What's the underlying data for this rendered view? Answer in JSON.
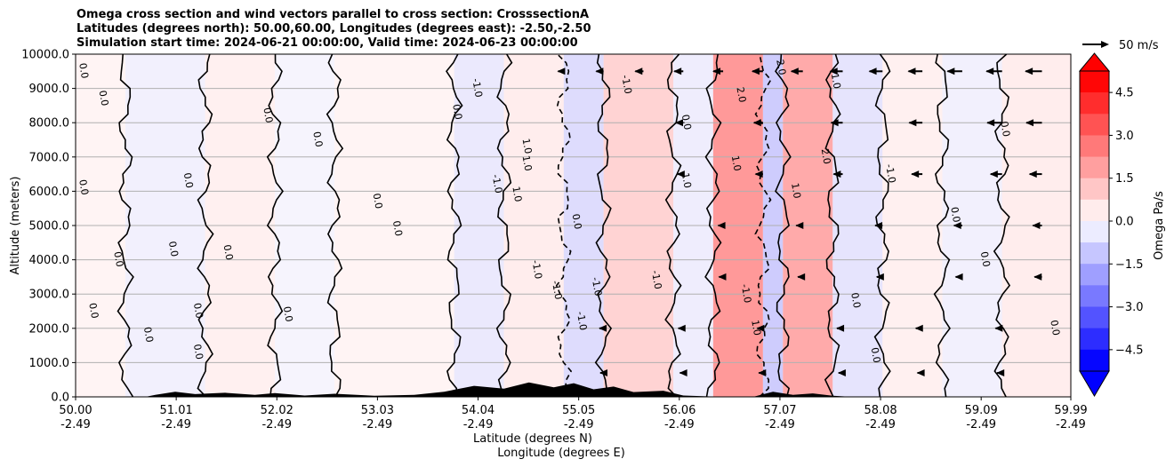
{
  "chart_data": {
    "type": "contour",
    "title": [
      "Omega cross section and wind vectors parallel to cross section: CrosssectionA",
      "Latitudes (degrees north): 50.00,60.00, Longitudes (degrees east): -2.50,-2.50",
      "Simulation start time: 2024-06-21 00:00:00, Valid time: 2024-06-23 00:00:00"
    ],
    "ylabel": "Altitude (meters)",
    "xlabel_lat": "Latitude (degrees N)",
    "xlabel_lon": "Longitude (degrees E)",
    "ylim": [
      0,
      10000
    ],
    "y_ticks": [
      0,
      1000,
      2000,
      3000,
      4000,
      5000,
      6000,
      7000,
      8000,
      9000,
      10000
    ],
    "y_tick_labels": [
      "0.0",
      "1000.0",
      "2000.0",
      "3000.0",
      "4000.0",
      "5000.0",
      "6000.0",
      "7000.0",
      "8000.0",
      "9000.0",
      "10000.0"
    ],
    "x_ticks": [
      {
        "lat": "50.00",
        "lon": "-2.49"
      },
      {
        "lat": "51.01",
        "lon": "-2.49"
      },
      {
        "lat": "52.02",
        "lon": "-2.49"
      },
      {
        "lat": "53.03",
        "lon": "-2.49"
      },
      {
        "lat": "54.04",
        "lon": "-2.49"
      },
      {
        "lat": "55.05",
        "lon": "-2.49"
      },
      {
        "lat": "56.06",
        "lon": "-2.49"
      },
      {
        "lat": "57.07",
        "lon": "-2.49"
      },
      {
        "lat": "58.08",
        "lon": "-2.49"
      },
      {
        "lat": "59.09",
        "lon": "-2.49"
      },
      {
        "lat": "59.99",
        "lon": "-2.49"
      }
    ],
    "colorbar": {
      "label": "Omega Pa/s",
      "range": [
        -5.25,
        5.25
      ],
      "ticks": [
        4.5,
        3.0,
        1.5,
        0.0,
        -1.5,
        -3.0,
        -4.5
      ],
      "tick_labels": [
        "4.5",
        "3.0",
        "1.5",
        "0.0",
        "−1.5",
        "−3.0",
        "−4.5"
      ],
      "extend": "both",
      "neg_color": "#0000ff",
      "pos_color": "#ff0000"
    },
    "quiver_key": {
      "label": "50 m/s",
      "value": 50
    },
    "omega_bands": [
      {
        "lat_start": 50.0,
        "lat_end": 50.5,
        "omega": 0.2
      },
      {
        "lat_start": 50.5,
        "lat_end": 51.3,
        "omega": -0.3
      },
      {
        "lat_start": 51.3,
        "lat_end": 52.0,
        "omega": 0.3
      },
      {
        "lat_start": 52.0,
        "lat_end": 52.6,
        "omega": -0.2
      },
      {
        "lat_start": 52.6,
        "lat_end": 53.8,
        "omega": 0.2
      },
      {
        "lat_start": 53.8,
        "lat_end": 54.3,
        "omega": -0.5
      },
      {
        "lat_start": 54.3,
        "lat_end": 54.9,
        "omega": 0.4
      },
      {
        "lat_start": 54.9,
        "lat_end": 55.3,
        "omega": -0.8
      },
      {
        "lat_start": 55.3,
        "lat_end": 56.0,
        "omega": 1.0
      },
      {
        "lat_start": 56.0,
        "lat_end": 56.4,
        "omega": -0.4
      },
      {
        "lat_start": 56.4,
        "lat_end": 56.9,
        "omega": 2.4
      },
      {
        "lat_start": 56.9,
        "lat_end": 57.1,
        "omega": -1.2
      },
      {
        "lat_start": 57.1,
        "lat_end": 57.6,
        "omega": 2.0
      },
      {
        "lat_start": 57.6,
        "lat_end": 58.1,
        "omega": -0.6
      },
      {
        "lat_start": 58.1,
        "lat_end": 58.7,
        "omega": 0.3
      },
      {
        "lat_start": 58.7,
        "lat_end": 59.3,
        "omega": -0.3
      },
      {
        "lat_start": 59.3,
        "lat_end": 59.99,
        "omega": 0.4
      }
    ],
    "wind_vectors": [
      {
        "lat": 54.9,
        "alt": 9500,
        "u": -14
      },
      {
        "lat": 55.3,
        "alt": 9500,
        "u": -18
      },
      {
        "lat": 55.7,
        "alt": 9500,
        "u": -20
      },
      {
        "lat": 56.1,
        "alt": 9500,
        "u": -22
      },
      {
        "lat": 56.5,
        "alt": 9500,
        "u": -24
      },
      {
        "lat": 56.9,
        "alt": 9500,
        "u": -26
      },
      {
        "lat": 57.3,
        "alt": 9500,
        "u": -28
      },
      {
        "lat": 57.7,
        "alt": 9500,
        "u": -30
      },
      {
        "lat": 58.1,
        "alt": 9500,
        "u": -32
      },
      {
        "lat": 58.5,
        "alt": 9500,
        "u": -34
      },
      {
        "lat": 58.9,
        "alt": 9500,
        "u": -36
      },
      {
        "lat": 59.3,
        "alt": 9500,
        "u": -38
      },
      {
        "lat": 59.7,
        "alt": 9500,
        "u": -40
      },
      {
        "lat": 56.1,
        "alt": 8000,
        "u": -18
      },
      {
        "lat": 56.9,
        "alt": 8000,
        "u": -22
      },
      {
        "lat": 57.7,
        "alt": 8000,
        "u": -28
      },
      {
        "lat": 58.5,
        "alt": 8000,
        "u": -32
      },
      {
        "lat": 59.3,
        "alt": 8000,
        "u": -36
      },
      {
        "lat": 59.7,
        "alt": 8000,
        "u": -38
      },
      {
        "lat": 56.1,
        "alt": 6500,
        "u": -14
      },
      {
        "lat": 56.9,
        "alt": 6500,
        "u": -18
      },
      {
        "lat": 57.7,
        "alt": 6500,
        "u": -22
      },
      {
        "lat": 58.5,
        "alt": 6500,
        "u": -26
      },
      {
        "lat": 59.3,
        "alt": 6500,
        "u": -28
      },
      {
        "lat": 59.7,
        "alt": 6500,
        "u": -30
      },
      {
        "lat": 56.5,
        "alt": 5000,
        "u": -12
      },
      {
        "lat": 57.3,
        "alt": 5000,
        "u": -16
      },
      {
        "lat": 58.1,
        "alt": 5000,
        "u": -18
      },
      {
        "lat": 58.9,
        "alt": 5000,
        "u": -20
      },
      {
        "lat": 59.7,
        "alt": 5000,
        "u": -22
      },
      {
        "lat": 56.5,
        "alt": 3500,
        "u": -10
      },
      {
        "lat": 57.3,
        "alt": 3500,
        "u": -12
      },
      {
        "lat": 58.1,
        "alt": 3500,
        "u": -14
      },
      {
        "lat": 58.9,
        "alt": 3500,
        "u": -16
      },
      {
        "lat": 59.7,
        "alt": 3500,
        "u": -18
      },
      {
        "lat": 55.3,
        "alt": 2000,
        "u": -10
      },
      {
        "lat": 56.1,
        "alt": 2000,
        "u": -12
      },
      {
        "lat": 56.9,
        "alt": 2000,
        "u": -14
      },
      {
        "lat": 57.7,
        "alt": 2000,
        "u": -14
      },
      {
        "lat": 58.5,
        "alt": 2000,
        "u": -16
      },
      {
        "lat": 59.3,
        "alt": 2000,
        "u": -16
      },
      {
        "lat": 55.3,
        "alt": 700,
        "u": -8
      },
      {
        "lat": 56.1,
        "alt": 700,
        "u": -8
      },
      {
        "lat": 56.9,
        "alt": 700,
        "u": -10
      },
      {
        "lat": 57.7,
        "alt": 700,
        "u": -10
      },
      {
        "lat": 58.5,
        "alt": 700,
        "u": -12
      },
      {
        "lat": 59.3,
        "alt": 700,
        "u": -12
      }
    ],
    "contour_labels": [
      {
        "text": "0.0",
        "lat": 50.05,
        "alt": 9500
      },
      {
        "text": "0.0",
        "lat": 50.25,
        "alt": 8700
      },
      {
        "text": "0.0",
        "lat": 51.9,
        "alt": 8200
      },
      {
        "text": "0.0",
        "lat": 52.4,
        "alt": 7500
      },
      {
        "text": "0.0",
        "lat": 51.1,
        "alt": 6300
      },
      {
        "text": "0.0",
        "lat": 50.05,
        "alt": 6100
      },
      {
        "text": "0.0",
        "lat": 53.0,
        "alt": 5700
      },
      {
        "text": "0.0",
        "lat": 53.2,
        "alt": 4900
      },
      {
        "text": "0.0",
        "lat": 51.5,
        "alt": 4200
      },
      {
        "text": "0.0",
        "lat": 50.4,
        "alt": 4000
      },
      {
        "text": "0.0",
        "lat": 50.95,
        "alt": 4300
      },
      {
        "text": "0.0",
        "lat": 51.2,
        "alt": 2500
      },
      {
        "text": "0.0",
        "lat": 50.15,
        "alt": 2500
      },
      {
        "text": "0.0",
        "lat": 50.7,
        "alt": 1800
      },
      {
        "text": "0.0",
        "lat": 52.1,
        "alt": 2400
      },
      {
        "text": "0.0",
        "lat": 51.2,
        "alt": 1300
      },
      {
        "text": "0.0",
        "lat": 53.8,
        "alt": 8300
      },
      {
        "text": "-1.0",
        "lat": 54.0,
        "alt": 9000
      },
      {
        "text": "1.0",
        "lat": 54.5,
        "alt": 7300
      },
      {
        "text": "1.0",
        "lat": 54.5,
        "alt": 6800
      },
      {
        "text": "-1.0",
        "lat": 54.2,
        "alt": 6200
      },
      {
        "text": "1.0",
        "lat": 54.4,
        "alt": 5900
      },
      {
        "text": "0.0",
        "lat": 55.0,
        "alt": 5100
      },
      {
        "text": "-1.0",
        "lat": 54.6,
        "alt": 3700
      },
      {
        "text": "-1.0",
        "lat": 54.8,
        "alt": 3100
      },
      {
        "text": "-1.0",
        "lat": 55.2,
        "alt": 3200
      },
      {
        "text": "-1.0",
        "lat": 55.05,
        "alt": 2200
      },
      {
        "text": "-1.0",
        "lat": 55.8,
        "alt": 3400
      },
      {
        "text": "-1.0",
        "lat": 55.5,
        "alt": 9100
      },
      {
        "text": "0.0",
        "lat": 56.1,
        "alt": 8000
      },
      {
        "text": "1.0",
        "lat": 56.1,
        "alt": 6300
      },
      {
        "text": "1.0",
        "lat": 56.6,
        "alt": 6800
      },
      {
        "text": "-1.0",
        "lat": 56.7,
        "alt": 3000
      },
      {
        "text": "1.0",
        "lat": 56.8,
        "alt": 2000
      },
      {
        "text": "1.0",
        "lat": 57.2,
        "alt": 6000
      },
      {
        "text": "2.0",
        "lat": 56.65,
        "alt": 8800
      },
      {
        "text": "2.0",
        "lat": 57.05,
        "alt": 9600
      },
      {
        "text": "2.0",
        "lat": 57.5,
        "alt": 7000
      },
      {
        "text": "1.0",
        "lat": 57.6,
        "alt": 9200
      },
      {
        "text": "-1.0",
        "lat": 58.15,
        "alt": 6500
      },
      {
        "text": "0.0",
        "lat": 58.8,
        "alt": 5300
      },
      {
        "text": "0.0",
        "lat": 59.1,
        "alt": 4000
      },
      {
        "text": "0.0",
        "lat": 59.3,
        "alt": 7800
      },
      {
        "text": "0.0",
        "lat": 59.8,
        "alt": 2000
      },
      {
        "text": "0.0",
        "lat": 57.8,
        "alt": 2800
      },
      {
        "text": "0.0",
        "lat": 58.0,
        "alt": 1200
      }
    ],
    "terrain": [
      {
        "lat": 50.0,
        "h": 0
      },
      {
        "lat": 50.7,
        "h": 0
      },
      {
        "lat": 50.8,
        "h": 60
      },
      {
        "lat": 51.0,
        "h": 150
      },
      {
        "lat": 51.2,
        "h": 80
      },
      {
        "lat": 51.5,
        "h": 120
      },
      {
        "lat": 51.8,
        "h": 60
      },
      {
        "lat": 52.0,
        "h": 110
      },
      {
        "lat": 52.3,
        "h": 40
      },
      {
        "lat": 52.6,
        "h": 90
      },
      {
        "lat": 53.0,
        "h": 30
      },
      {
        "lat": 53.4,
        "h": 60
      },
      {
        "lat": 53.7,
        "h": 150
      },
      {
        "lat": 54.0,
        "h": 320
      },
      {
        "lat": 54.3,
        "h": 240
      },
      {
        "lat": 54.55,
        "h": 420
      },
      {
        "lat": 54.8,
        "h": 280
      },
      {
        "lat": 55.0,
        "h": 400
      },
      {
        "lat": 55.2,
        "h": 220
      },
      {
        "lat": 55.4,
        "h": 300
      },
      {
        "lat": 55.6,
        "h": 140
      },
      {
        "lat": 55.9,
        "h": 180
      },
      {
        "lat": 56.1,
        "h": 40
      },
      {
        "lat": 56.5,
        "h": 0
      },
      {
        "lat": 56.8,
        "h": 0
      },
      {
        "lat": 57.0,
        "h": 150
      },
      {
        "lat": 57.2,
        "h": 60
      },
      {
        "lat": 57.4,
        "h": 100
      },
      {
        "lat": 57.6,
        "h": 30
      },
      {
        "lat": 57.8,
        "h": 0
      },
      {
        "lat": 59.99,
        "h": 0
      }
    ]
  }
}
